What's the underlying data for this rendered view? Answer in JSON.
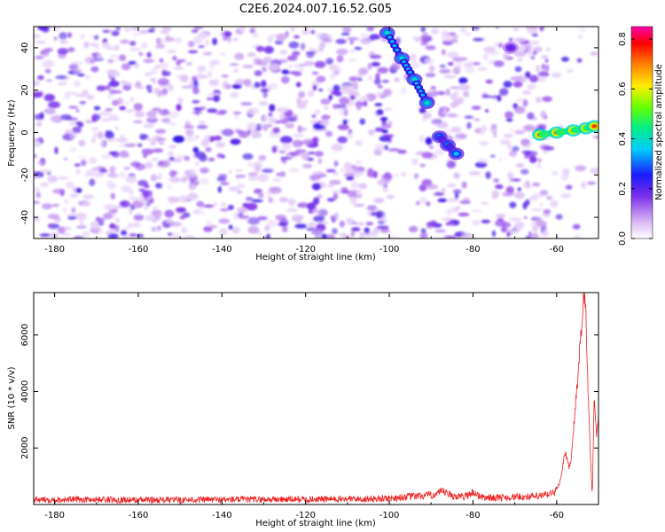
{
  "title": "C2E6.2024.007.16.52.G05",
  "chart_data": [
    {
      "type": "heatmap",
      "xlabel": "Height of straight line (km)",
      "ylabel": "Frequency (Hz)",
      "xlim": [
        -185,
        -50
      ],
      "ylim": [
        -50,
        50
      ],
      "x_ticks": [
        -180,
        -160,
        -140,
        -120,
        -100,
        -80,
        -60
      ],
      "y_ticks": [
        -40,
        -20,
        0,
        20,
        40
      ],
      "colorbar": {
        "label": "Normalized spectral amplitude",
        "range": [
          0,
          0.85
        ],
        "ticks": [
          0.0,
          0.2,
          0.4,
          0.6,
          0.8
        ]
      },
      "features": [
        {
          "x": [
            -100.5,
            -97,
            -94,
            -91
          ],
          "y": [
            47,
            35,
            25,
            14
          ],
          "peak": 0.35
        },
        {
          "x": [
            -88,
            -86,
            -84
          ],
          "y": [
            -2,
            -6,
            -10
          ],
          "peak": 0.3
        },
        {
          "x": [
            -64,
            -60,
            -56,
            -53,
            -51
          ],
          "y": [
            -1,
            0,
            1,
            2,
            3
          ],
          "peak": 0.75
        },
        {
          "x": [
            -71
          ],
          "y": [
            40
          ],
          "peak": 0.15
        }
      ]
    },
    {
      "type": "line",
      "xlabel": "Height of straight line (km)",
      "ylabel": "SNR (10 * v/v)",
      "xlim": [
        -185,
        -50
      ],
      "ylim": [
        0,
        7500
      ],
      "x_ticks": [
        -180,
        -160,
        -140,
        -120,
        -100,
        -80,
        -60
      ],
      "y_ticks": [
        2000,
        4000,
        6000
      ],
      "color": "#ee2222",
      "series": [
        {
          "x": [
            -185,
            -170,
            -160,
            -140,
            -120,
            -105,
            -100,
            -95,
            -90,
            -87,
            -85,
            -82,
            -80,
            -78,
            -75,
            -70,
            -65,
            -62,
            -60,
            -59,
            -58,
            -57,
            -56.5,
            -56,
            -55,
            -54,
            -53.5,
            -53,
            -52.5,
            -52,
            -51.5,
            -51,
            -50.5,
            -50
          ],
          "values": [
            170,
            180,
            160,
            175,
            185,
            200,
            220,
            280,
            330,
            450,
            300,
            280,
            440,
            260,
            240,
            260,
            280,
            350,
            500,
            900,
            1900,
            1300,
            1600,
            2600,
            4400,
            6400,
            7300,
            6800,
            4000,
            2000,
            200,
            4000,
            2500,
            3000
          ]
        }
      ]
    }
  ]
}
